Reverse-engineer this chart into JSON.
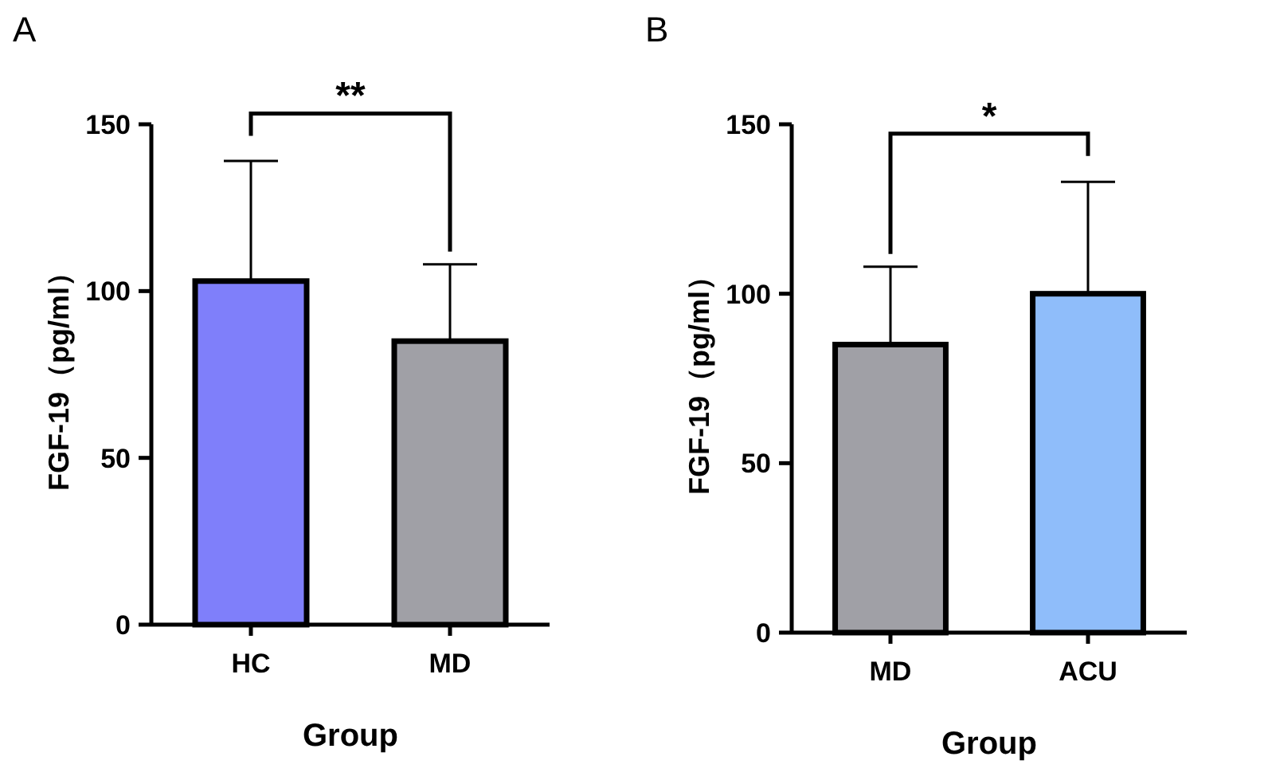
{
  "chart_data": [
    {
      "type": "bar",
      "title": "A",
      "xlabel": "Group",
      "ylabel": "FGF-19（pg/ml）",
      "categories": [
        "HC",
        "MD"
      ],
      "values": [
        103,
        85
      ],
      "colors": [
        "#7f7ffa",
        "#a0a0a6"
      ],
      "errors": [
        [
          103,
          139
        ],
        [
          85,
          108
        ]
      ],
      "ylim": [
        0,
        150
      ],
      "yticks": [
        0,
        50,
        100,
        150
      ],
      "annotations": [
        "**"
      ]
    },
    {
      "type": "bar",
      "title": "B",
      "xlabel": "Group",
      "ylabel": "FGF-19（pg/ml）",
      "categories": [
        "MD",
        "ACU"
      ],
      "values": [
        85,
        100
      ],
      "colors": [
        "#a0a0a6",
        "#8fbdfa"
      ],
      "errors": [
        [
          85,
          108
        ],
        [
          100,
          133
        ]
      ],
      "ylim": [
        0,
        150
      ],
      "yticks": [
        0,
        50,
        100,
        150
      ],
      "annotations": [
        "*"
      ]
    }
  ]
}
